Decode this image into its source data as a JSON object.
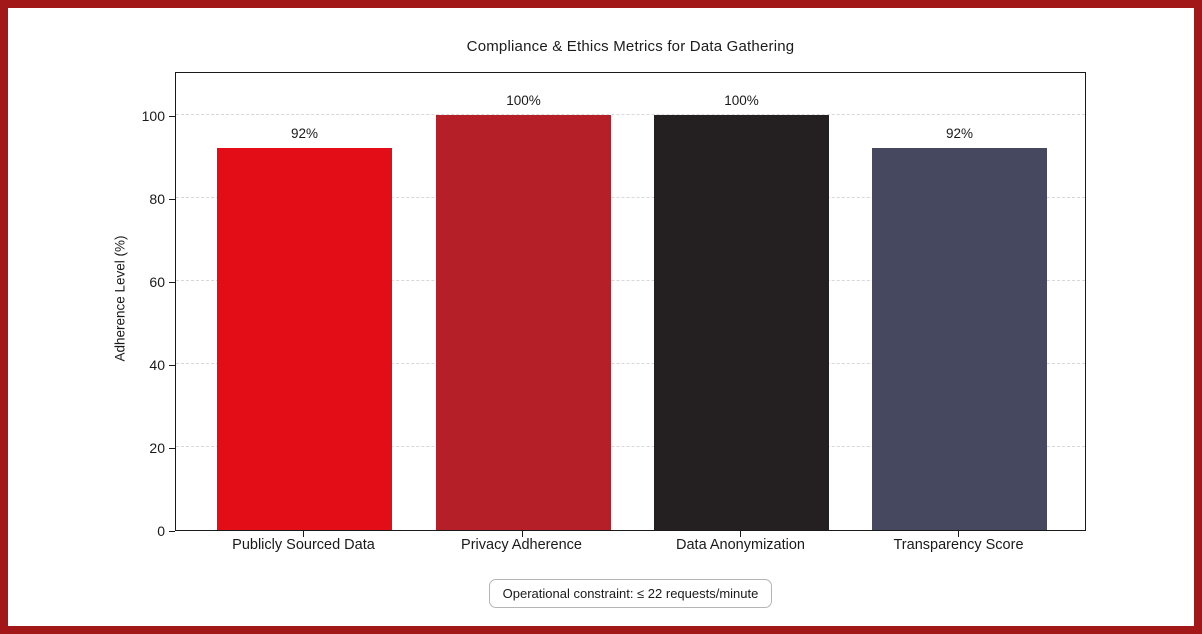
{
  "chart_data": {
    "type": "bar",
    "title": "Compliance & Ethics Metrics for Data Gathering",
    "categories": [
      "Publicly Sourced Data",
      "Privacy Adherence",
      "Data Anonymization",
      "Transparency Score"
    ],
    "values": [
      92,
      100,
      100,
      92
    ],
    "value_labels": [
      "92%",
      "100%",
      "100%",
      "92%"
    ],
    "bar_colors": [
      "#e30d17",
      "#b41f28",
      "#241f21",
      "#46485f"
    ],
    "xlabel": "",
    "ylabel": "Adherence Level (%)",
    "ylim": [
      0,
      110.6
    ],
    "yticks": [
      0,
      20,
      40,
      60,
      80,
      100
    ],
    "ytick_labels": [
      "0",
      "20",
      "40",
      "60",
      "80",
      "100"
    ],
    "grid": "horizontal dashed",
    "legend": "none",
    "annotation": "Operational constraint: ≤ 22 requests/minute"
  },
  "frame": {
    "border_color": "#a21717",
    "background_color": "#ffffff",
    "spine_color": "#1a1a1a",
    "gridline_color": "#d8d8d8"
  }
}
